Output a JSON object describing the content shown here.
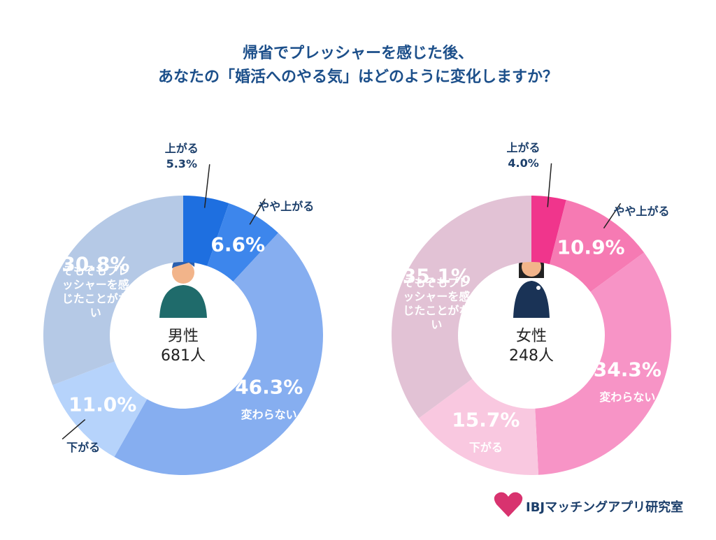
{
  "title": [
    "帰省でプレッシャーを感じた後、",
    "あなたの「婚活へのやる気」はどのように変化しますか？"
  ],
  "logo": "IBJマッチングアプリ研究室",
  "chart_data": [
    {
      "type": "donut",
      "center_label": "男性",
      "count_label": "681人",
      "categories": [
        "上がる",
        "やや上がる",
        "変わらない",
        "下がる",
        "そもそもプレッシャーを感じたことがない"
      ],
      "values": [
        5.3,
        6.6,
        46.3,
        11.0,
        30.8
      ],
      "value_labels": [
        "5.3%",
        "6.6%",
        "46.3%",
        "11.0%",
        "30.8%"
      ],
      "colors": [
        "#1e6fe0",
        "#3d86ec",
        "#86aef0",
        "#b6d3fb",
        "#b5c9e6"
      ]
    },
    {
      "type": "donut",
      "center_label": "女性",
      "count_label": "248人",
      "categories": [
        "上がる",
        "やや上がる",
        "変わらない",
        "下がる",
        "そもそもプレッシャーを感じたことがない"
      ],
      "values": [
        4.0,
        10.9,
        34.3,
        15.7,
        35.1
      ],
      "value_labels": [
        "4.0%",
        "10.9%",
        "34.3%",
        "15.7%",
        "35.1%"
      ],
      "colors": [
        "#f0358c",
        "#f67ab3",
        "#f794c6",
        "#f9c8e0",
        "#e2c2d5"
      ]
    }
  ]
}
